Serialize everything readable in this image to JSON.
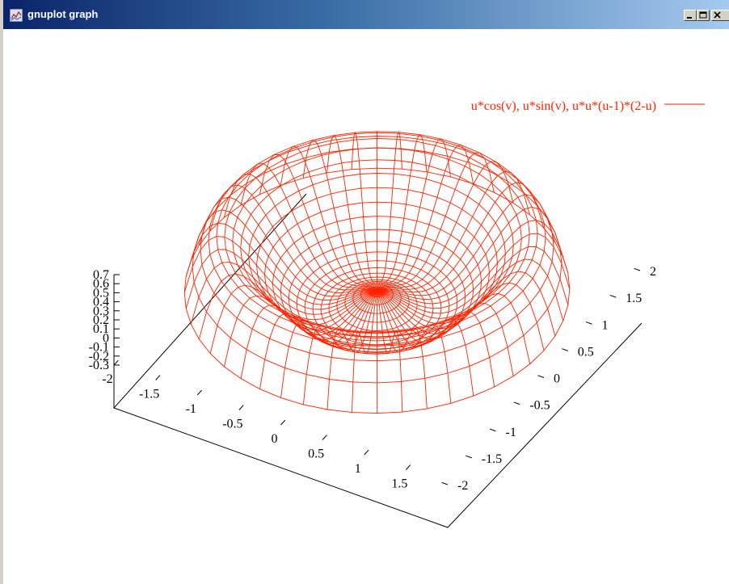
{
  "window": {
    "title": "gnuplot graph",
    "icon": "gnuplot-icon",
    "buttons": [
      "minimize-icon",
      "maximize-icon",
      "close-icon"
    ]
  },
  "chart_data": {
    "type": "surface",
    "plot_style": "wireframe",
    "series": [
      {
        "name": "u*cos(v), u*sin(v), u*u*(u-1)*(2-u)",
        "color": "#ff2200",
        "x_expr": "u*cos(v)",
        "y_expr": "u*sin(v)",
        "z_expr": "u*u*(u-1)*(2-u)",
        "u_range": [
          0,
          2
        ],
        "v_range": [
          0,
          6.283
        ]
      }
    ],
    "x_ticks": [
      "-2",
      "-1.5",
      "-1",
      "-0.5",
      "0",
      "0.5",
      "1",
      "1.5"
    ],
    "y_ticks": [
      "-2",
      "-1.5",
      "-1",
      "-0.5",
      "0",
      "0.5",
      "1",
      "1.5",
      "2"
    ],
    "z_ticks": [
      "0.7",
      "0.6",
      "0.5",
      "0.4",
      "0.3",
      "0.2",
      "0.1",
      "0",
      "-0.1",
      "-0.2",
      "-0.3"
    ],
    "xlim": [
      -2,
      2
    ],
    "ylim": [
      -2,
      2
    ],
    "zlim": [
      -0.3,
      0.7
    ],
    "legend_position": "top-right",
    "grid": false,
    "border": "base"
  }
}
